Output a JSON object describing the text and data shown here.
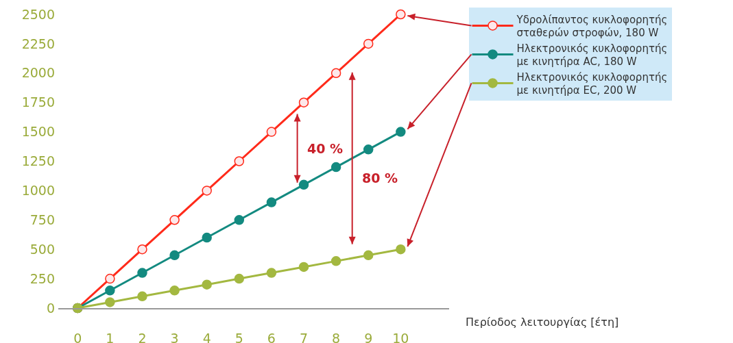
{
  "chart_data": {
    "type": "line",
    "xlabel": "Περίοδος λειτουργίας [έτη]",
    "x": [
      0,
      1,
      2,
      3,
      4,
      5,
      6,
      7,
      8,
      9,
      10
    ],
    "series": [
      {
        "name": "Υδρολίπαντος κυκλοφορητής σταθερών στροφών, 180 W",
        "color": "#ff2a1a",
        "values": [
          0,
          250,
          500,
          750,
          1000,
          1250,
          1500,
          1750,
          2000,
          2250,
          2500
        ]
      },
      {
        "name": "Ηλεκτρονικός κυκλοφορητής με κινητήρα AC, 180 W",
        "color": "#138a80",
        "values": [
          0,
          150,
          300,
          450,
          600,
          750,
          900,
          1050,
          1200,
          1350,
          1500
        ]
      },
      {
        "name": "Ηλεκτρονικός κυκλοφορητής με κινητήρα EC, 200 W",
        "color": "#a3b840",
        "values": [
          0,
          50,
          100,
          150,
          200,
          250,
          300,
          350,
          400,
          450,
          500
        ]
      }
    ],
    "annotations": [
      "40 %",
      "80 %"
    ],
    "xlim": [
      -0.6,
      11.5
    ],
    "xticks": [
      0,
      1,
      2,
      3,
      4,
      5,
      6,
      7,
      8,
      9,
      10
    ],
    "ylim": [
      0,
      2500
    ],
    "yticks": [
      0,
      250,
      500,
      750,
      1000,
      1250,
      1500,
      1750,
      2000,
      2250,
      2500
    ],
    "grid": false,
    "legend": "right",
    "marker": "circle",
    "line_style": "solid"
  }
}
